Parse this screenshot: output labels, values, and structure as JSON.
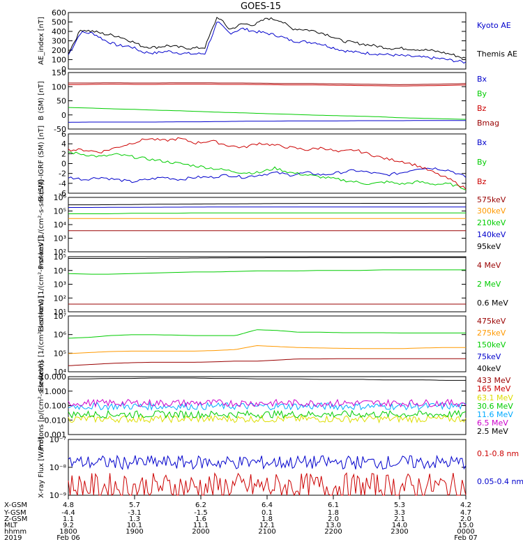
{
  "title": "GOES-15",
  "colors": {
    "black": "#000000",
    "blue": "#0000cc",
    "green": "#00cc00",
    "red": "#cc0000",
    "darkred": "#990000",
    "orange": "#ff9900",
    "cyan": "#00aaff",
    "yellow": "#dddd00",
    "magenta": "#cc00cc"
  },
  "chart_data": [
    {
      "type": "line",
      "ylabel": "AE_index [nT]",
      "ylim": [
        0,
        600
      ],
      "yscale": "linear",
      "yticks": [
        "600",
        "500",
        "400",
        "300",
        "200",
        "100",
        "0"
      ],
      "series": [
        {
          "name": "Kyoto AE",
          "color": "blue",
          "values": [
            150,
            390,
            380,
            300,
            250,
            240,
            180,
            170,
            190,
            170,
            160,
            165,
            500,
            380,
            430,
            400,
            380,
            350,
            300,
            290,
            280,
            240,
            200,
            180,
            170,
            160,
            150,
            140,
            130,
            120,
            110,
            90,
            70
          ]
        },
        {
          "name": "Themis AE",
          "color": "black",
          "values": [
            170,
            420,
            400,
            370,
            350,
            300,
            240,
            230,
            250,
            230,
            220,
            230,
            560,
            420,
            480,
            470,
            540,
            520,
            430,
            420,
            400,
            360,
            300,
            280,
            260,
            240,
            220,
            220,
            210,
            200,
            180,
            150,
            110
          ]
        }
      ]
    },
    {
      "type": "line",
      "ylabel": "B (SM) [nT]",
      "ylim": [
        -60,
        150
      ],
      "yscale": "linear",
      "yticks": [
        "150",
        "100",
        "50",
        "0",
        "-50"
      ],
      "series": [
        {
          "name": "Bx",
          "color": "blue",
          "values": [
            -35,
            -34,
            -34,
            -34,
            -34,
            -33,
            -33,
            -32,
            -31,
            -31,
            -30,
            -30,
            -30,
            -29,
            -29,
            -29,
            -28,
            -28,
            -28
          ]
        },
        {
          "name": "By",
          "color": "green",
          "values": [
            20,
            18,
            15,
            13,
            10,
            8,
            5,
            2,
            0,
            -3,
            -5,
            -8,
            -10,
            -12,
            -14,
            -18,
            -20,
            -22,
            -24
          ]
        },
        {
          "name": "Bz",
          "color": "red",
          "values": [
            105,
            106,
            107,
            106,
            106,
            107,
            107,
            106,
            106,
            105,
            104,
            104,
            103,
            102,
            101,
            100,
            101,
            102,
            104
          ]
        },
        {
          "name": "Bmag",
          "color": "darkred",
          "values": [
            111,
            111,
            112,
            111,
            111,
            112,
            112,
            111,
            111,
            110,
            109,
            109,
            108,
            107,
            106,
            105,
            106,
            107,
            109
          ]
        }
      ]
    },
    {
      "type": "line",
      "ylabel": "B (SM)-IGRF (SM) [nT]",
      "ylim": [
        -6.5,
        6.5
      ],
      "yscale": "linear",
      "yticks": [
        "6",
        "4",
        "2",
        "0",
        "-2",
        "-4",
        "-6"
      ],
      "series": [
        {
          "name": "Bx",
          "color": "blue",
          "values": [
            -3,
            -3.5,
            -3,
            -3.5,
            -4,
            -3.5,
            -3,
            -3.5,
            -3,
            -3,
            -2.5,
            -3,
            -2.5,
            -2,
            -2.5,
            -2,
            -2.5,
            -2,
            -1.5,
            -2,
            -2.5,
            -2,
            -1,
            -1,
            -1.5,
            -3
          ]
        },
        {
          "name": "By",
          "color": "green",
          "values": [
            2.5,
            2,
            1.5,
            2,
            1.5,
            1,
            0.5,
            0,
            -0.5,
            -1,
            -1.5,
            -2,
            -2,
            -1,
            -2,
            -2.5,
            -3,
            -3.5,
            -4,
            -4.5,
            -4,
            -4.5,
            -4,
            -4.5,
            -4.5,
            -5.5
          ]
        },
        {
          "name": "Bz",
          "color": "red",
          "values": [
            3,
            3,
            2.5,
            3.5,
            4.5,
            5.5,
            5,
            5.5,
            4.5,
            5,
            4,
            3.5,
            4.5,
            4,
            3.5,
            3,
            3.5,
            2.5,
            3,
            2,
            1,
            0.5,
            -0.5,
            -2,
            -3.5,
            -5.5
          ]
        }
      ]
    },
    {
      "type": "line",
      "ylabel": "Protons [1/(cm²-s-sr-keV)]",
      "ylim": [
        1,
        6
      ],
      "yscale": "log",
      "yticks": [
        "10⁶",
        "10⁵",
        "10⁴",
        "10³",
        "10²"
      ],
      "series": [
        {
          "name": "575keV",
          "color": "darkred",
          "values": [
            2,
            2,
            2,
            2,
            2,
            2,
            2,
            2,
            2,
            2,
            2,
            2,
            2,
            2,
            2,
            2,
            2,
            2,
            2,
            2
          ]
        },
        {
          "name": "300keV",
          "color": "orange",
          "values": [
            3,
            3,
            3,
            3,
            3,
            3,
            3,
            3,
            3,
            3,
            3,
            3,
            3,
            3,
            3,
            3,
            3,
            3,
            3,
            3
          ]
        },
        {
          "name": "210keV",
          "color": "green",
          "values": [
            3.5,
            3.5,
            3.5,
            3.55,
            3.55,
            3.55,
            3.6,
            3.6,
            3.6,
            3.6,
            3.6,
            3.6,
            3.6,
            3.6,
            3.6,
            3.6,
            3.6,
            3.6,
            3.6,
            3.6
          ]
        },
        {
          "name": "140keV",
          "color": "blue",
          "values": [
            4.3,
            4.3,
            4.32,
            4.33,
            4.34,
            4.35,
            4.36,
            4.37,
            4.37,
            4.38,
            4.38,
            4.38,
            4.38,
            4.38,
            4.38,
            4.38,
            4.38,
            4.38,
            4.38,
            4.38
          ]
        },
        {
          "name": "95keV",
          "color": "black",
          "values": [
            4.7,
            4.7,
            4.72,
            4.75,
            4.78,
            4.8,
            4.82,
            4.84,
            4.86,
            4.88,
            4.9,
            4.92,
            4.92,
            4.93,
            4.93,
            4.94,
            4.94,
            4.94,
            4.95,
            4.95
          ]
        }
      ]
    },
    {
      "type": "line",
      "ylabel": "Electrons [1/(cm²-s-sr-keV)]",
      "ylim": [
        1,
        5
      ],
      "yscale": "log",
      "yticks": [
        "10⁵",
        "10⁴",
        "10³",
        "10²",
        "10¹"
      ],
      "series": [
        {
          "name": "4 MeV",
          "color": "darkred",
          "values": [
            1.25,
            1.25,
            1.25,
            1.25,
            1.25,
            1.25,
            1.25,
            1.25,
            1.25,
            1.25,
            1.25,
            1.25,
            1.25,
            1.25,
            1.25,
            1.25,
            1.25,
            1.25,
            1.25,
            1.25
          ]
        },
        {
          "name": "2 MeV",
          "color": "green",
          "values": [
            3.05,
            3.0,
            3.0,
            3.05,
            3.1,
            3.15,
            3.2,
            3.2,
            3.25,
            3.3,
            3.3,
            3.3,
            3.35,
            3.35,
            3.35,
            3.4,
            3.4,
            3.4,
            3.4,
            3.4
          ]
        },
        {
          "name": "0.6 MeV",
          "color": "black",
          "values": [
            4.75,
            4.75,
            4.75,
            4.75,
            4.76,
            4.78,
            4.8,
            4.82,
            4.84,
            4.84,
            4.85,
            4.85,
            4.86,
            4.86,
            4.86,
            4.86,
            4.87,
            4.87,
            4.88,
            4.88
          ]
        }
      ]
    },
    {
      "type": "line",
      "ylabel": "Electrons [1/(cm²-s-sr-keV)]",
      "ylim": [
        4,
        7
      ],
      "yscale": "log",
      "yticks": [
        "10⁷",
        "10⁶",
        "10⁵",
        "10⁴"
      ],
      "series": [
        {
          "name": "475keV",
          "color": "darkred",
          "values": [
            4.25,
            4.3,
            4.35,
            4.38,
            4.4,
            4.4,
            4.4,
            4.42,
            4.45,
            4.45,
            4.5,
            4.55,
            4.55,
            4.56,
            4.56,
            4.56,
            4.56,
            4.56,
            4.56,
            4.56
          ]
        },
        {
          "name": "275keV",
          "color": "orange",
          "values": [
            4.8,
            4.85,
            4.9,
            4.92,
            4.92,
            4.92,
            4.92,
            4.95,
            5.0,
            5.2,
            5.15,
            5.1,
            5.08,
            5.06,
            5.05,
            5.05,
            5.05,
            5.08,
            5.1,
            5.1
          ]
        },
        {
          "name": "150keV",
          "color": "green",
          "values": [
            5.6,
            5.65,
            5.75,
            5.8,
            5.8,
            5.78,
            5.75,
            5.75,
            5.75,
            6.1,
            6.05,
            5.95,
            5.95,
            5.92,
            5.92,
            5.92,
            5.9,
            5.9,
            5.9,
            5.9
          ]
        },
        {
          "name": "75keV",
          "color": "blue",
          "values": []
        },
        {
          "name": "40keV",
          "color": "black",
          "values": []
        }
      ]
    },
    {
      "type": "line",
      "ylabel": "Protons [p/(cm²-s-sr-keV)]",
      "ylim": [
        0.001,
        10
      ],
      "yscale": "log",
      "yticks": [
        "10.000",
        "1.000",
        "0.100",
        "0.010",
        "0.001"
      ],
      "series": [
        {
          "name": "433 MeV",
          "color": "darkred",
          "values": []
        },
        {
          "name": "165 MeV",
          "color": "red",
          "values": []
        },
        {
          "name": "63.1 MeV",
          "color": "yellow",
          "values": [
            0.012
          ]
        },
        {
          "name": "30.6 MeV",
          "color": "green",
          "values": [
            0.025
          ]
        },
        {
          "name": "11.6 MeV",
          "color": "cyan",
          "values": [
            0.09
          ]
        },
        {
          "name": "6.5 MeV",
          "color": "magenta",
          "values": [
            0.15
          ]
        },
        {
          "name": "2.5 MeV",
          "color": "black",
          "values": [
            7,
            7,
            7.5,
            7.5,
            8,
            8,
            8,
            7.5,
            7.5,
            7,
            7,
            7,
            6.5,
            6.5,
            6.5,
            6,
            6,
            6,
            5.5,
            5.5
          ]
        }
      ]
    },
    {
      "type": "line",
      "ylabel": "X-ray Flux [W/m²]",
      "ylim": [
        1e-09,
        1e-07
      ],
      "yscale": "log",
      "yticks": [
        "10⁻⁷",
        "10⁻⁸",
        "10⁻⁹"
      ],
      "series": [
        {
          "name": "0.1-0.8 nm",
          "color": "red",
          "values": [
            2e-09
          ]
        },
        {
          "name": "0.05-0.4 nm",
          "color": "blue",
          "values": [
            1.5e-08
          ]
        }
      ]
    }
  ],
  "xaxis": {
    "row_labels": [
      "X-GSM",
      "Y-GSM",
      "Z-GSM",
      "MLT",
      "hhmm",
      "2019"
    ],
    "columns": [
      {
        "values": [
          "4.8",
          "-4.4",
          "1.1",
          "9.2",
          "1800",
          "Feb 06"
        ]
      },
      {
        "values": [
          "5.7",
          "-3.1",
          "1.3",
          "10.1",
          "1900",
          ""
        ]
      },
      {
        "values": [
          "6.2",
          "-1.5",
          "1.6",
          "11.1",
          "2000",
          ""
        ]
      },
      {
        "values": [
          "6.4",
          "0.1",
          "1.8",
          "12.1",
          "2100",
          ""
        ]
      },
      {
        "values": [
          "6.1",
          "1.8",
          "2.0",
          "13.0",
          "2200",
          ""
        ]
      },
      {
        "values": [
          "5.3",
          "3.3",
          "2.1",
          "14.0",
          "2300",
          ""
        ]
      },
      {
        "values": [
          "4.2",
          "4.7",
          "2.0",
          "15.0",
          "0000",
          "Feb 07"
        ]
      }
    ]
  }
}
